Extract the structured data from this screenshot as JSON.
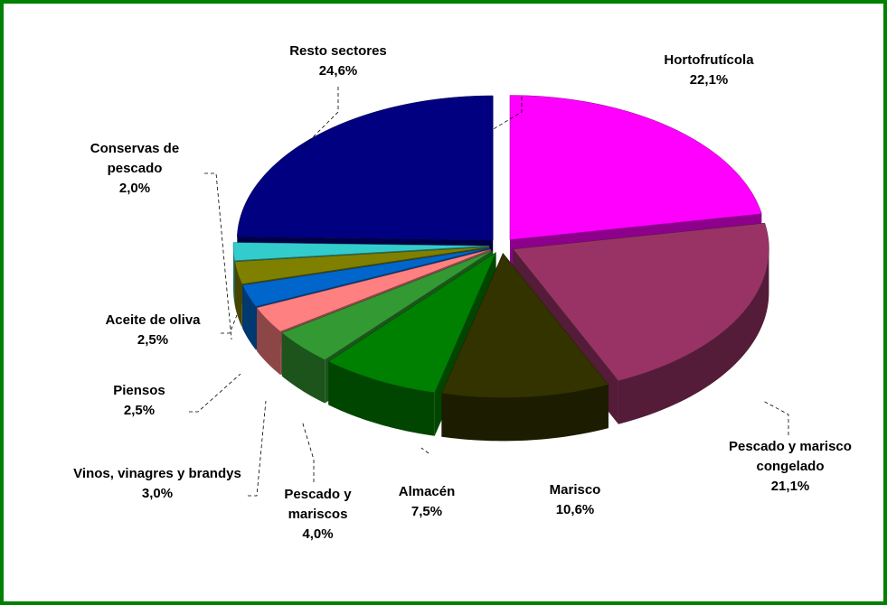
{
  "chart_data": {
    "type": "pie",
    "categories": [
      "Hortofrutícola",
      "Pescado y marisco congelado",
      "Marisco",
      "Almacén",
      "Pescado y mariscos",
      "Vinos, vinagres y brandys",
      "Piensos",
      "Aceite de oliva",
      "Conservas de pescado",
      "Resto sectores"
    ],
    "values": [
      22.1,
      21.1,
      10.6,
      7.5,
      4.0,
      3.0,
      2.5,
      2.5,
      2.0,
      24.6
    ],
    "value_labels": [
      "22,1%",
      "21,1%",
      "10,6%",
      "7,5%",
      "4,0%",
      "3,0%",
      "2,5%",
      "2,5%",
      "2,0%",
      "24,6%"
    ],
    "colors": [
      "#ff00ff",
      "#993366",
      "#333300",
      "#008000",
      "#339933",
      "#ff8080",
      "#0066cc",
      "#808000",
      "#33cccc",
      "#000080"
    ]
  }
}
